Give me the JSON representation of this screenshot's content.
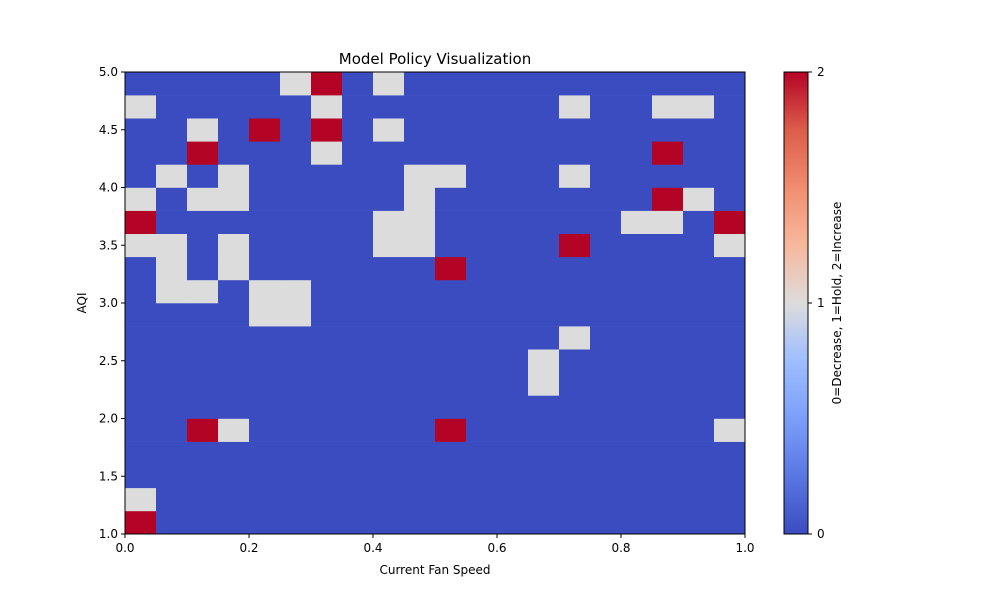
{
  "chart_data": {
    "type": "heatmap",
    "title": "Model Policy Visualization",
    "xlabel": "Current Fan Speed",
    "ylabel": "AQI",
    "xlim": [
      0.0,
      1.0
    ],
    "ylim": [
      1.0,
      5.0
    ],
    "x_ticks": [
      "0.0",
      "0.2",
      "0.4",
      "0.6",
      "0.8",
      "1.0"
    ],
    "y_ticks": [
      "1.0",
      "1.5",
      "2.0",
      "2.5",
      "3.0",
      "3.5",
      "4.0",
      "4.5",
      "5.0"
    ],
    "grid_cols": 20,
    "grid_rows": 20,
    "colormap": "coolwarm",
    "colors": {
      "0": "#3b4cc0",
      "1": "#dddcdc",
      "2": "#b40426"
    },
    "colorbar": {
      "label": "0=Decrease, 1=Hold, 2=Increase",
      "ticks": [
        "0",
        "1",
        "2"
      ],
      "range": [
        0,
        2
      ]
    },
    "values": [
      [
        2,
        0,
        0,
        0,
        0,
        0,
        0,
        0,
        0,
        0,
        0,
        0,
        0,
        0,
        0,
        0,
        0,
        0,
        0,
        0
      ],
      [
        1,
        0,
        0,
        0,
        0,
        0,
        0,
        0,
        0,
        0,
        0,
        0,
        0,
        0,
        0,
        0,
        0,
        0,
        0,
        0
      ],
      [
        0,
        0,
        0,
        0,
        0,
        0,
        0,
        0,
        0,
        0,
        0,
        0,
        0,
        0,
        0,
        0,
        0,
        0,
        0,
        0
      ],
      [
        0,
        0,
        0,
        0,
        0,
        0,
        0,
        0,
        0,
        0,
        0,
        0,
        0,
        0,
        0,
        0,
        0,
        0,
        0,
        0
      ],
      [
        0,
        0,
        2,
        1,
        0,
        0,
        0,
        0,
        0,
        0,
        2,
        0,
        0,
        0,
        0,
        0,
        0,
        0,
        0,
        1
      ],
      [
        0,
        0,
        0,
        0,
        0,
        0,
        0,
        0,
        0,
        0,
        0,
        0,
        0,
        0,
        0,
        0,
        0,
        0,
        0,
        0
      ],
      [
        0,
        0,
        0,
        0,
        0,
        0,
        0,
        0,
        0,
        0,
        0,
        0,
        0,
        1,
        0,
        0,
        0,
        0,
        0,
        0
      ],
      [
        0,
        0,
        0,
        0,
        0,
        0,
        0,
        0,
        0,
        0,
        0,
        0,
        0,
        1,
        0,
        0,
        0,
        0,
        0,
        0
      ],
      [
        0,
        0,
        0,
        0,
        0,
        0,
        0,
        0,
        0,
        0,
        0,
        0,
        0,
        0,
        1,
        0,
        0,
        0,
        0,
        0
      ],
      [
        0,
        0,
        0,
        0,
        1,
        1,
        0,
        0,
        0,
        0,
        0,
        0,
        0,
        0,
        0,
        0,
        0,
        0,
        0,
        0
      ],
      [
        0,
        1,
        1,
        0,
        1,
        1,
        0,
        0,
        0,
        0,
        0,
        0,
        0,
        0,
        0,
        0,
        0,
        0,
        0,
        0
      ],
      [
        0,
        1,
        0,
        1,
        0,
        0,
        0,
        0,
        0,
        0,
        2,
        0,
        0,
        0,
        0,
        0,
        0,
        0,
        0,
        0
      ],
      [
        1,
        1,
        0,
        1,
        0,
        0,
        0,
        0,
        1,
        1,
        0,
        0,
        0,
        0,
        2,
        0,
        0,
        0,
        0,
        1
      ],
      [
        2,
        0,
        0,
        0,
        0,
        0,
        0,
        0,
        1,
        1,
        0,
        0,
        0,
        0,
        0,
        0,
        1,
        1,
        0,
        2
      ],
      [
        1,
        0,
        1,
        1,
        0,
        0,
        0,
        0,
        0,
        1,
        0,
        0,
        0,
        0,
        0,
        0,
        0,
        2,
        1,
        0
      ],
      [
        0,
        1,
        0,
        1,
        0,
        0,
        0,
        0,
        0,
        1,
        1,
        0,
        0,
        0,
        1,
        0,
        0,
        0,
        0,
        0
      ],
      [
        0,
        0,
        2,
        0,
        0,
        0,
        1,
        0,
        0,
        0,
        0,
        0,
        0,
        0,
        0,
        0,
        0,
        2,
        0,
        0
      ],
      [
        0,
        0,
        1,
        0,
        2,
        0,
        2,
        0,
        1,
        0,
        0,
        0,
        0,
        0,
        0,
        0,
        0,
        0,
        0,
        0
      ],
      [
        1,
        0,
        0,
        0,
        0,
        0,
        1,
        0,
        0,
        0,
        0,
        0,
        0,
        0,
        1,
        0,
        0,
        1,
        1,
        0
      ],
      [
        0,
        0,
        0,
        0,
        0,
        1,
        2,
        0,
        1,
        0,
        0,
        0,
        0,
        0,
        0,
        0,
        0,
        0,
        0,
        0
      ]
    ]
  }
}
